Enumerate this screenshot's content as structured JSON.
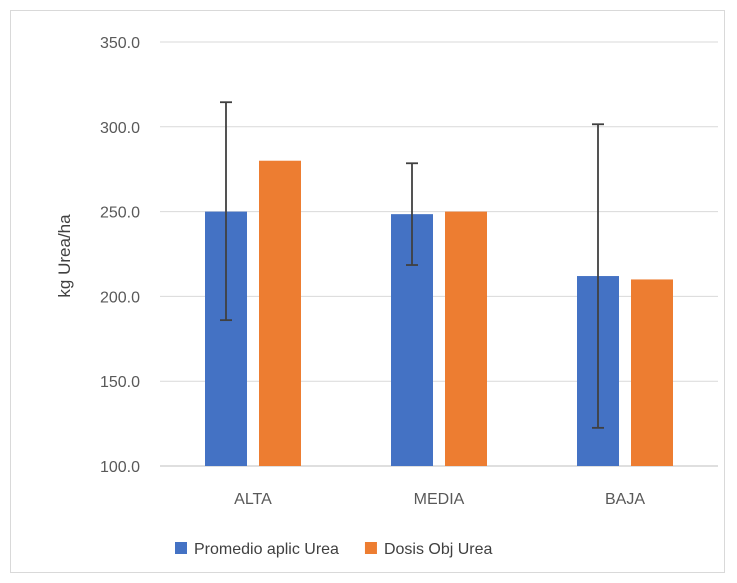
{
  "chart_data": {
    "type": "bar",
    "categories": [
      "ALTA",
      "MEDIA",
      "BAJA"
    ],
    "series": [
      {
        "name": "Promedio aplic Urea",
        "values": [
          250.0,
          248.5,
          212.0
        ],
        "error_low": [
          186.0,
          218.5,
          122.5
        ],
        "error_high": [
          314.5,
          278.5,
          301.5
        ],
        "color": "#4472C4"
      },
      {
        "name": "Dosis Obj Urea",
        "values": [
          280.0,
          250.0,
          210.0
        ],
        "color": "#ED7D31"
      }
    ],
    "ylabel": "kg Urea/ha",
    "xlabel": "",
    "ylim": [
      100,
      350
    ],
    "yticks": [
      100,
      150,
      200,
      250,
      300,
      350
    ],
    "ytick_labels": [
      "100.0",
      "150.0",
      "200.0",
      "250.0",
      "300.0",
      "350.0"
    ],
    "grid": true,
    "legend_position": "bottom"
  }
}
